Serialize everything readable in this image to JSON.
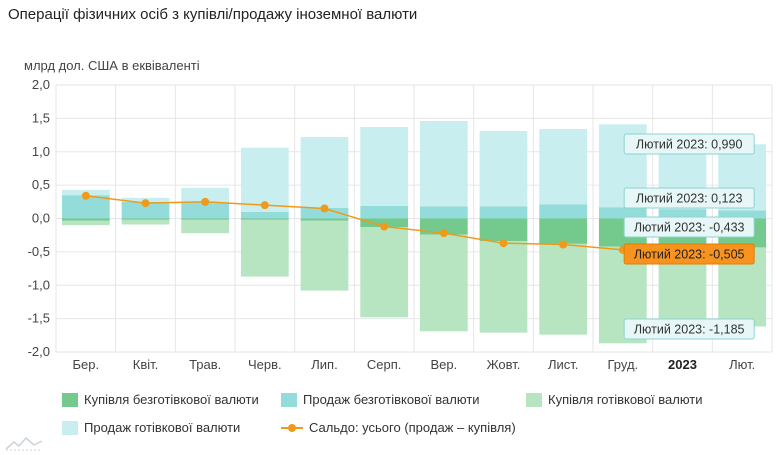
{
  "title": "Операції фізичних осіб з купівлі/продажу іноземної валюти",
  "colors": {
    "buy_noncash": "#74c98c",
    "sell_noncash": "#94dcd9",
    "buy_cash": "#b7e4c1",
    "sell_cash": "#c8eef0",
    "saldo": "#f09a1a",
    "grid": "#e6e6e6",
    "tooltip_bg": "#e7f7f7",
    "tooltip_border": "#8fd3d0",
    "tooltip_highlight": "#f7931e"
  },
  "chart_data": {
    "type": "bar",
    "ylabel": "млрд дол. США в еквіваленті",
    "ylim": [
      -2.0,
      2.0
    ],
    "yticks": [
      "2,0",
      "1,5",
      "1,0",
      "0,5",
      "0,0",
      "-0,5",
      "-1,0",
      "-1,5",
      "-2,0"
    ],
    "categories": [
      "Бер.",
      "Квіт.",
      "Трав.",
      "Черв.",
      "Лип.",
      "Серп.",
      "Вер.",
      "Жовт.",
      "Лист.",
      "Груд.",
      "2023",
      "Лют."
    ],
    "series": [
      {
        "name": "Купівля безготівкової валюти",
        "kind": "bar",
        "color_key": "buy_noncash",
        "values": [
          -0.03,
          -0.02,
          -0.02,
          -0.02,
          -0.03,
          -0.13,
          -0.24,
          -0.34,
          -0.38,
          -0.42,
          -0.44,
          -0.433
        ]
      },
      {
        "name": "Продаж безготівкової валюти",
        "kind": "bar",
        "color_key": "sell_noncash",
        "values": [
          0.35,
          0.25,
          0.24,
          0.1,
          0.16,
          0.19,
          0.18,
          0.18,
          0.21,
          0.17,
          0.14,
          0.123
        ]
      },
      {
        "name": "Купівля готівкової валюти",
        "kind": "bar",
        "color_key": "buy_cash",
        "values": [
          -0.07,
          -0.07,
          -0.2,
          -0.85,
          -1.05,
          -1.35,
          -1.45,
          -1.37,
          -1.36,
          -1.45,
          -1.22,
          -1.185
        ]
      },
      {
        "name": "Продаж готівкової валюти",
        "kind": "bar",
        "color_key": "sell_cash",
        "values": [
          0.08,
          0.06,
          0.22,
          0.96,
          1.06,
          1.18,
          1.28,
          1.13,
          1.13,
          1.24,
          1.07,
          0.99
        ]
      },
      {
        "name": "Сальдо: усього (продаж – купівля)",
        "kind": "line",
        "color_key": "saldo",
        "values": [
          0.34,
          0.23,
          0.25,
          0.2,
          0.15,
          -0.12,
          -0.22,
          -0.37,
          -0.39,
          -0.47,
          -0.45,
          -0.505
        ]
      }
    ],
    "tooltips": [
      {
        "label": "Лютий 2023: 0,990",
        "series": 3
      },
      {
        "label": "Лютий 2023: 0,123",
        "series": 1
      },
      {
        "label": "Лютий 2023: -0,433",
        "series": 0
      },
      {
        "label": "Лютий 2023: -0,505",
        "series": 4,
        "highlight": true
      },
      {
        "label": "Лютий 2023: -1,185",
        "series": 2
      }
    ],
    "bold_category": "2023",
    "grid": true,
    "legend_position": "bottom"
  },
  "legend": [
    {
      "label": "Купівля безготівкової валюти",
      "color_key": "buy_noncash",
      "kind": "bar"
    },
    {
      "label": "Продаж безготівкової валюти",
      "color_key": "sell_noncash",
      "kind": "bar"
    },
    {
      "label": "Купівля готівкової валюти",
      "color_key": "buy_cash",
      "kind": "bar"
    },
    {
      "label": "Продаж готівкової валюти",
      "color_key": "sell_cash",
      "kind": "bar"
    },
    {
      "label": "Сальдо: усього (продаж – купівля)",
      "color_key": "saldo",
      "kind": "line"
    }
  ],
  "logo_icon": "mountain-logo-icon"
}
